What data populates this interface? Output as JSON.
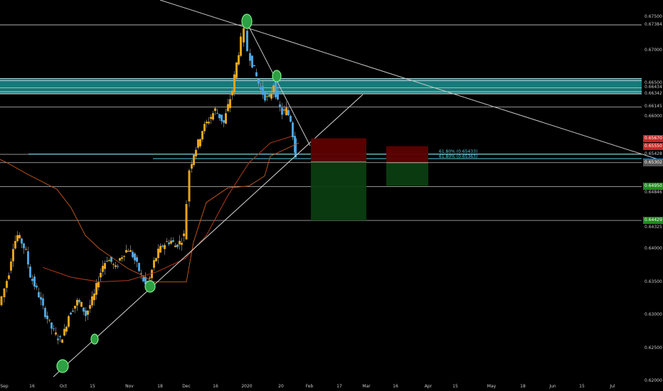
{
  "chart": {
    "instrument": "",
    "colors": {
      "background": "#000000",
      "up_candle": "#e8a317",
      "down_candle": "#4aa3df",
      "wick": "#9a9a9a",
      "horizontal_line": "#e8e8e8",
      "resistance_zone": "#1b8f8f",
      "resistance_border": "#d8f4f4",
      "moving_average": "#b33a1a",
      "kijun": "#c65c1c",
      "fib_line": "#4dd0e1",
      "stop_zone": "#5e0000",
      "target_zone": "#0b3d10",
      "circle_fill": "#2ea043",
      "circle_stroke": "#7ff08a"
    }
  },
  "price_axis": {
    "labels": [
      "0.67500",
      "0.67384",
      "0.67000",
      "0.66500",
      "0.66434",
      "0.66342",
      "0.66145",
      "0.66000",
      "0.65428",
      "0.65302",
      "0.65296",
      "0.64942",
      "0.64846",
      "0.64421",
      "0.64325",
      "0.64000",
      "0.63500",
      "0.63000",
      "0.62500",
      "0.62000"
    ],
    "tags": [
      {
        "text": "0.65670",
        "color": "#c62828"
      },
      {
        "text": "0.65550",
        "color": "#c62828"
      },
      {
        "text": "0.65312",
        "color": "#2f7fb8"
      },
      {
        "text": "0.65302",
        "color": "#555555"
      },
      {
        "text": "0.64950",
        "color": "#1e8c1e"
      },
      {
        "text": "0.64429",
        "color": "#1e8c1e"
      }
    ]
  },
  "time_axis": {
    "labels": [
      "Sep",
      "16",
      "Oct",
      "15",
      "Nov",
      "18",
      "Dec",
      "16",
      "2020",
      "20",
      "Feb",
      "17",
      "Mar",
      "16",
      "Apr",
      "15",
      "May",
      "18",
      "Jun",
      "15",
      "Jul"
    ]
  },
  "fib_labels": [
    "61.80% (0.65433)",
    "61.80% (0.65363)"
  ],
  "chart_data": {
    "type": "candlestick",
    "ylim": [
      0.6198,
      0.6776
    ],
    "x_domain": [
      "2019-08-29",
      "2020-07-26"
    ],
    "horizontal_levels": [
      0.67384,
      0.66434,
      0.66342,
      0.66145,
      0.65428,
      0.65302,
      0.64942,
      0.64429
    ],
    "resistance_zone": [
      0.66342,
      0.66574
    ],
    "candles": []
  }
}
